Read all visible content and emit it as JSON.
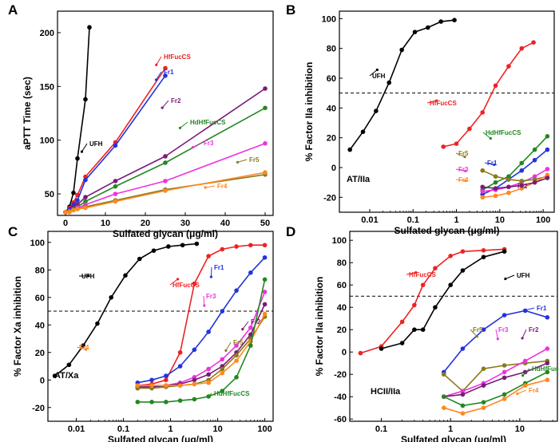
{
  "colors": {
    "UFH": "#000000",
    "HfFucCS": "#ee2222",
    "Fr1": "#2233dd",
    "Fr2": "#7a1a7a",
    "HdHfFucCS": "#228822",
    "Fr3": "#ee33dd",
    "Fr4": "#ff8822",
    "Fr5": "#8a7a1a"
  },
  "chart_data": [
    {
      "panel": "A",
      "type": "line",
      "xscale": "linear",
      "xlabel": "Sulfated glycan (μg/ml)",
      "ylabel": "aPTT Time (sec)",
      "xlim": [
        -2,
        52
      ],
      "ylim": [
        30,
        220
      ],
      "xticks": [
        0,
        10,
        20,
        30,
        40,
        50
      ],
      "yticks": [
        50,
        100,
        150,
        200
      ],
      "refline": null,
      "corner_label": "",
      "series": [
        {
          "name": "UFH",
          "x": [
            0,
            1,
            2,
            3,
            5,
            6
          ],
          "y": [
            33,
            38,
            51,
            83,
            138,
            205
          ]
        },
        {
          "name": "HfFucCS",
          "x": [
            0,
            1,
            2,
            3,
            5,
            12.5,
            25
          ],
          "y": [
            33,
            37,
            42,
            49,
            66,
            98,
            167
          ]
        },
        {
          "name": "Fr1",
          "x": [
            0,
            1,
            2,
            3,
            5,
            12.5,
            25
          ],
          "y": [
            33,
            36,
            40,
            44,
            63,
            95,
            160
          ]
        },
        {
          "name": "Fr2",
          "x": [
            0,
            1,
            2,
            3,
            5,
            12.5,
            25,
            50
          ],
          "y": [
            33,
            34,
            37,
            40,
            47,
            62,
            85,
            148
          ]
        },
        {
          "name": "HdHfFucCS",
          "x": [
            0,
            1,
            2,
            3,
            5,
            12.5,
            25,
            50
          ],
          "y": [
            33,
            34,
            36,
            38,
            43,
            57,
            79,
            130
          ]
        },
        {
          "name": "Fr3",
          "x": [
            0,
            1,
            2,
            3,
            5,
            12.5,
            25,
            50
          ],
          "y": [
            33,
            34,
            35,
            37,
            40,
            50,
            62,
            97
          ]
        },
        {
          "name": "Fr5",
          "x": [
            0,
            1,
            2,
            3,
            5,
            12.5,
            25,
            50
          ],
          "y": [
            33,
            34,
            35,
            36,
            38,
            44,
            54,
            68
          ]
        },
        {
          "name": "Fr4",
          "x": [
            0,
            1,
            2,
            3,
            5,
            12.5,
            25,
            50
          ],
          "y": [
            33,
            33,
            35,
            36,
            37,
            43,
            53,
            70
          ]
        }
      ]
    },
    {
      "panel": "B",
      "type": "line",
      "xscale": "log",
      "xlabel": "Sulfated glycan (μg/ml)",
      "ylabel": "% Factor IIa inhibition",
      "xlim": [
        0.002,
        180
      ],
      "ylim": [
        -30,
        105
      ],
      "xticks": [
        0.01,
        0.1,
        1,
        10,
        100
      ],
      "yticks": [
        -20,
        0,
        20,
        40,
        60,
        80,
        100
      ],
      "refline": 50,
      "corner_label": "AT/IIa",
      "series": [
        {
          "name": "UFH",
          "x": [
            0.0035,
            0.007,
            0.014,
            0.028,
            0.055,
            0.11,
            0.22,
            0.44,
            0.9
          ],
          "y": [
            12,
            24,
            38,
            57,
            79,
            91,
            94,
            98,
            99
          ]
        },
        {
          "name": "HfFucCS",
          "x": [
            0.5,
            1,
            2,
            4,
            8,
            16,
            32,
            60
          ],
          "y": [
            14,
            16,
            26,
            37,
            55,
            68,
            80,
            84
          ]
        },
        {
          "name": "HdHfFucCS",
          "x": [
            4,
            8,
            16,
            32,
            64,
            125
          ],
          "y": [
            -15,
            -10,
            -6,
            3,
            12,
            21
          ]
        },
        {
          "name": "Fr1",
          "x": [
            4,
            8,
            16,
            32,
            64,
            125
          ],
          "y": [
            -18,
            -14,
            -8,
            -2,
            5,
            12
          ]
        },
        {
          "name": "Fr3",
          "x": [
            4,
            8,
            16,
            32,
            64,
            125
          ],
          "y": [
            -16,
            -15,
            -13,
            -10,
            -6,
            -1
          ]
        },
        {
          "name": "Fr5",
          "x": [
            4,
            8,
            16,
            32,
            64,
            125
          ],
          "y": [
            -2,
            -6,
            -8,
            -9,
            -8,
            -6
          ]
        },
        {
          "name": "Fr4",
          "x": [
            4,
            8,
            16,
            32,
            64,
            125
          ],
          "y": [
            -20,
            -19,
            -17,
            -14,
            -10,
            -5
          ]
        },
        {
          "name": "Fr2",
          "x": [
            4,
            8,
            16,
            32,
            64,
            125
          ],
          "y": [
            -13,
            -14,
            -13,
            -12,
            -10,
            -7
          ]
        }
      ]
    },
    {
      "panel": "C",
      "type": "line",
      "xscale": "log",
      "xlabel": "Sulfated glycan (μg/ml)",
      "ylabel": "% Factor Xa inhibition",
      "xlim": [
        0.0025,
        150
      ],
      "ylim": [
        -30,
        108
      ],
      "xticks": [
        0.01,
        0.1,
        1,
        10,
        100
      ],
      "yticks": [
        -20,
        0,
        20,
        40,
        60,
        80,
        100
      ],
      "refline": 50,
      "corner_label": "AT/Xa",
      "series": [
        {
          "name": "UFH",
          "x": [
            0.0035,
            0.007,
            0.014,
            0.028,
            0.055,
            0.11,
            0.22,
            0.44,
            0.9,
            1.8,
            3.6
          ],
          "y": [
            3,
            11,
            25,
            41,
            60,
            76,
            88,
            94,
            97,
            98,
            99
          ]
        },
        {
          "name": "HfFucCS",
          "x": [
            0.2,
            0.4,
            0.8,
            1.6,
            3.2,
            6.4,
            12.5,
            25,
            50,
            100
          ],
          "y": [
            -4,
            -3,
            0,
            20,
            70,
            90,
            95,
            97,
            98,
            98
          ]
        },
        {
          "name": "Fr1",
          "x": [
            0.2,
            0.4,
            0.8,
            1.6,
            3.2,
            6.4,
            12.5,
            25,
            50,
            100
          ],
          "y": [
            -2,
            0,
            3,
            10,
            22,
            35,
            50,
            65,
            78,
            89
          ]
        },
        {
          "name": "Fr3",
          "x": [
            0.2,
            0.4,
            0.8,
            1.6,
            3.2,
            6.4,
            12.5,
            25,
            50,
            100
          ],
          "y": [
            -6,
            -5,
            -4,
            -2,
            2,
            8,
            15,
            25,
            38,
            64
          ]
        },
        {
          "name": "Fr2",
          "x": [
            0.2,
            0.4,
            0.8,
            1.6,
            3.2,
            6.4,
            12.5,
            25,
            50,
            100
          ],
          "y": [
            -5,
            -5,
            -4,
            -3,
            0,
            4,
            10,
            20,
            33,
            55
          ]
        },
        {
          "name": "Fr5",
          "x": [
            0.2,
            0.4,
            0.8,
            1.6,
            3.2,
            6.4,
            12.5,
            25,
            50,
            100
          ],
          "y": [
            -6,
            -6,
            -5,
            -4,
            -3,
            0,
            8,
            18,
            30,
            46
          ]
        },
        {
          "name": "Fr4",
          "x": [
            0.2,
            0.4,
            0.8,
            1.6,
            3.2,
            6.4,
            12.5,
            25,
            50,
            100
          ],
          "y": [
            -4,
            -4,
            -4,
            -4,
            -3,
            -2,
            5,
            14,
            28,
            48
          ]
        },
        {
          "name": "HdHfFucCS",
          "x": [
            0.2,
            0.4,
            0.8,
            1.6,
            3.2,
            6.4,
            12.5,
            25,
            50,
            100
          ],
          "y": [
            -16,
            -16,
            -16,
            -15,
            -14,
            -12,
            -8,
            2,
            25,
            73
          ]
        }
      ]
    },
    {
      "panel": "D",
      "type": "line",
      "xscale": "log",
      "xlabel": "Sulfated glycan (μg/ml)",
      "ylabel": "% Factor IIa inhibition",
      "xlim": [
        0.035,
        35
      ],
      "ylim": [
        -62,
        108
      ],
      "xticks": [
        0.1,
        1,
        10
      ],
      "yticks": [
        -60,
        -40,
        -20,
        0,
        20,
        40,
        60,
        80,
        100
      ],
      "refline": 50,
      "corner_label": "HCII/IIa",
      "series": [
        {
          "name": "HfFucCS",
          "x": [
            0.05,
            0.1,
            0.2,
            0.3,
            0.4,
            0.6,
            1,
            1.5,
            3,
            6
          ],
          "y": [
            -1,
            5,
            27,
            42,
            60,
            75,
            86,
            90,
            91,
            92
          ]
        },
        {
          "name": "UFH",
          "x": [
            0.1,
            0.2,
            0.3,
            0.4,
            0.6,
            1,
            1.5,
            3,
            6
          ],
          "y": [
            3,
            8,
            20,
            20,
            40,
            60,
            73,
            85,
            90
          ]
        },
        {
          "name": "Fr1",
          "x": [
            0.8,
            1.5,
            3,
            6,
            12,
            25
          ],
          "y": [
            -18,
            3,
            20,
            33,
            37,
            31
          ]
        },
        {
          "name": "Fr5",
          "x": [
            0.8,
            1.5,
            3,
            6,
            12,
            25
          ],
          "y": [
            -20,
            -35,
            -15,
            -12,
            -10,
            -8
          ]
        },
        {
          "name": "Fr3",
          "x": [
            0.8,
            1.5,
            3,
            6,
            12,
            25
          ],
          "y": [
            -40,
            -35,
            -28,
            -18,
            -8,
            3
          ]
        },
        {
          "name": "Fr2",
          "x": [
            0.8,
            1.5,
            3,
            6,
            12,
            25
          ],
          "y": [
            -40,
            -38,
            -30,
            -23,
            -18,
            -10
          ]
        },
        {
          "name": "HdHfFucCS",
          "x": [
            0.8,
            1.5,
            3,
            6,
            12,
            25
          ],
          "y": [
            -40,
            -48,
            -45,
            -38,
            -28,
            -18
          ]
        },
        {
          "name": "Fr4",
          "x": [
            0.8,
            1.5,
            3,
            6,
            12,
            25
          ],
          "y": [
            -50,
            -55,
            -50,
            -42,
            -30,
            -25
          ]
        }
      ]
    }
  ]
}
